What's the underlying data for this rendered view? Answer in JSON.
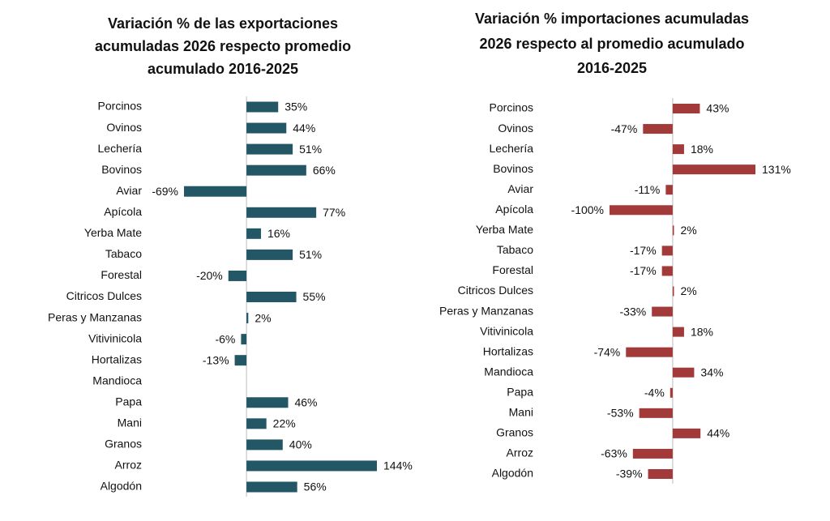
{
  "chart_data": [
    {
      "type": "barh",
      "title": [
        "Variación % de las exportaciones",
        "acumuladas 2026 respecto promedio",
        "acumulado 2016-2025"
      ],
      "categories": [
        "Porcinos",
        "Ovinos",
        "Lechería",
        "Bovinos",
        "Aviar",
        "Apícola",
        "Yerba Mate",
        "Tabaco",
        "Forestal",
        "Citricos Dulces",
        "Peras y Manzanas",
        "Vitivinicola",
        "Hortalizas",
        "Mandioca",
        "Papa",
        "Mani",
        "Granos",
        "Arroz",
        "Algodón"
      ],
      "values": [
        35,
        44,
        51,
        66,
        -69,
        77,
        16,
        51,
        -20,
        55,
        2,
        -6,
        -13,
        null,
        46,
        22,
        40,
        144,
        56
      ],
      "value_labels": [
        "35%",
        "44%",
        "51%",
        "66%",
        "-69%",
        "77%",
        "16%",
        "51%",
        "-20%",
        "55%",
        "2%",
        "-6%",
        "-13%",
        null,
        "46%",
        "22%",
        "40%",
        "144%",
        "56%"
      ],
      "color": "#245766"
    },
    {
      "type": "barh",
      "title": [
        "Variación % importaciones acumuladas",
        "2026 respecto al promedio acumulado",
        "2016-2025"
      ],
      "categories": [
        "Porcinos",
        "Ovinos",
        "Lechería",
        "Bovinos",
        "Aviar",
        "Apícola",
        "Yerba Mate",
        "Tabaco",
        "Forestal",
        "Citricos Dulces",
        "Peras y Manzanas",
        "Vitivinicola",
        "Hortalizas",
        "Mandioca",
        "Papa",
        "Mani",
        "Granos",
        "Arroz",
        "Algodón"
      ],
      "values": [
        43,
        -47,
        18,
        131,
        -11,
        -100,
        2,
        -17,
        -17,
        2,
        -33,
        18,
        -74,
        34,
        -4,
        -53,
        44,
        -63,
        -39
      ],
      "value_labels": [
        "43%",
        "-47%",
        "18%",
        "131%",
        "-11%",
        "-100%",
        "2%",
        "-17%",
        "-17%",
        "2%",
        "-33%",
        "18%",
        "-74%",
        "34%",
        "-4%",
        "-53%",
        "44%",
        "-63%",
        "-39%"
      ],
      "color": "#a33a3a"
    }
  ]
}
